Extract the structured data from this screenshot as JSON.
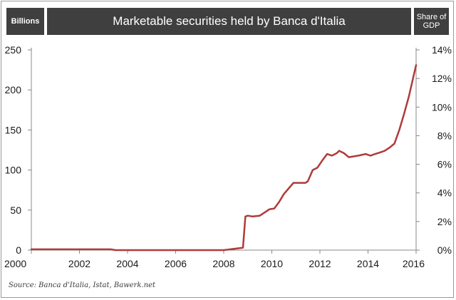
{
  "header": {
    "left_label": "Billions",
    "title": "Marketable securities held by Banca d'Italia",
    "right_label": "Share of GDP"
  },
  "source": "Source: Banca d'Italia, Istat, Bawerk.net",
  "colors": {
    "line": "#b03a3a",
    "header_bg": "#3f3f3f",
    "axis": "#888888"
  },
  "chart_data": {
    "type": "line",
    "title": "Marketable securities held by Banca d'Italia",
    "ylabel": "Billions",
    "y2label": "Share of GDP",
    "xlim": [
      2000,
      2016
    ],
    "ylim": [
      0,
      250
    ],
    "y2lim": [
      0,
      14
    ],
    "x_ticks": [
      "2000",
      "2002",
      "2004",
      "2006",
      "2008",
      "2010",
      "2012",
      "2014",
      "2016"
    ],
    "y_ticks": [
      "0",
      "50",
      "100",
      "150",
      "200",
      "250"
    ],
    "y2_ticks": [
      "0%",
      "2%",
      "4%",
      "6%",
      "8%",
      "10%",
      "12%",
      "14%"
    ],
    "grid": false,
    "series": [
      {
        "x": [
          2000.0,
          2003.3,
          2003.5,
          2007.8,
          2008.0,
          2008.8,
          2008.9,
          2009.0,
          2009.2,
          2009.5,
          2009.7,
          2009.9,
          2010.1,
          2010.3,
          2010.5,
          2010.7,
          2010.9,
          2011.2,
          2011.4,
          2011.5,
          2011.7,
          2011.9,
          2012.1,
          2012.3,
          2012.5,
          2012.7,
          2012.8,
          2013.0,
          2013.2,
          2013.4,
          2013.6,
          2013.9,
          2014.1,
          2014.3,
          2014.5,
          2014.7,
          2014.9,
          2015.1,
          2015.3,
          2015.5,
          2015.7,
          2015.9,
          2016.0
        ],
        "y": [
          1,
          1,
          0,
          0,
          0,
          3,
          42,
          43,
          42,
          43,
          47,
          51,
          52,
          60,
          70,
          77,
          84,
          84,
          84,
          86,
          100,
          103,
          112,
          120,
          118,
          121,
          124,
          121,
          116,
          117,
          118,
          120,
          118,
          120,
          122,
          124,
          128,
          133,
          150,
          170,
          192,
          218,
          231
        ]
      }
    ]
  }
}
